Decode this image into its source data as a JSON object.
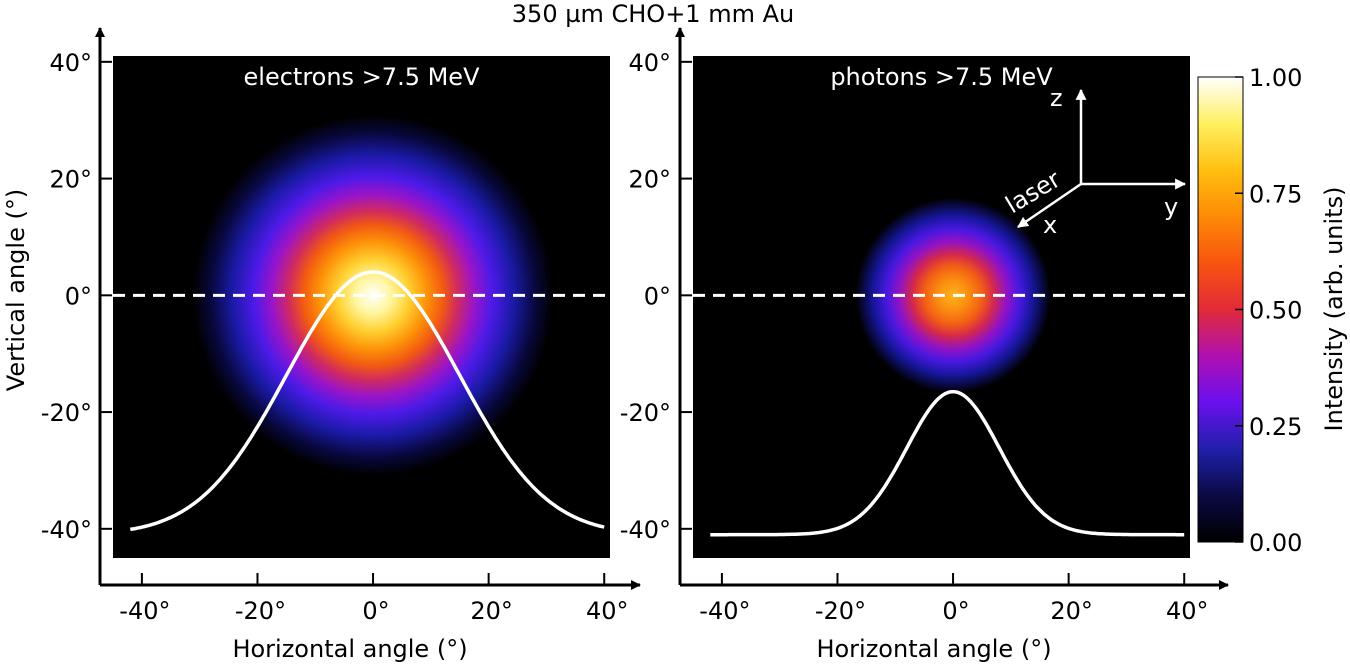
{
  "chart_data": {
    "title": "350 µm CHO+1 mm Au",
    "panels": [
      {
        "type": "heatmap",
        "label": "electrons >7.5 MeV",
        "xlabel": "Horizontal angle (°)",
        "ylabel": "Vertical angle (°)",
        "xlim": [
          -45,
          41
        ],
        "ylim": [
          -45,
          41
        ],
        "xticks": [
          -40,
          -20,
          0,
          20,
          40
        ],
        "yticks": [
          -40,
          -20,
          0,
          20,
          40
        ],
        "tick_labels": [
          "-40°",
          "-20°",
          "0°",
          "20°",
          "40°"
        ],
        "spot": {
          "center_x": 0,
          "center_y": 0,
          "sigma_deg": 12,
          "peak": 1.0
        },
        "reference_line_y": 0,
        "profile": {
          "type": "line",
          "center_x": 0,
          "sigma_deg": 15,
          "peak_y": 4,
          "base_y": -41
        }
      },
      {
        "type": "heatmap",
        "label": "photons >7.5 MeV",
        "xlabel": "Horizontal angle (°)",
        "ylabel": "",
        "xlim": [
          -45,
          41
        ],
        "ylim": [
          -45,
          41
        ],
        "xticks": [
          -40,
          -20,
          0,
          20,
          40
        ],
        "yticks": [
          -40,
          -20,
          0,
          20,
          40
        ],
        "tick_labels": [
          "-40°",
          "-20°",
          "0°",
          "20°",
          "40°"
        ],
        "spot": {
          "center_x": 0,
          "center_y": 0,
          "sigma_deg": 6.5,
          "peak": 0.78
        },
        "reference_line_y": 0,
        "profile": {
          "type": "line",
          "center_x": 0,
          "sigma_deg": 8,
          "peak_y": -16.5,
          "base_y": -41
        }
      }
    ],
    "colorbar": {
      "label": "Intensity (arb. units)",
      "range": [
        0,
        1
      ],
      "ticks": [
        0,
        0.25,
        0.5,
        0.75,
        1.0
      ],
      "tick_labels": [
        "0.00",
        "0.25",
        "0.50",
        "0.75",
        "1.00"
      ],
      "colormap": "gnuplot2"
    },
    "axes_indicator": {
      "up": "z",
      "right": "y",
      "out": "x",
      "beam": "laser"
    }
  },
  "colors": {
    "axis": "#000000",
    "overlay": "#ffffff",
    "background": "#000000"
  }
}
